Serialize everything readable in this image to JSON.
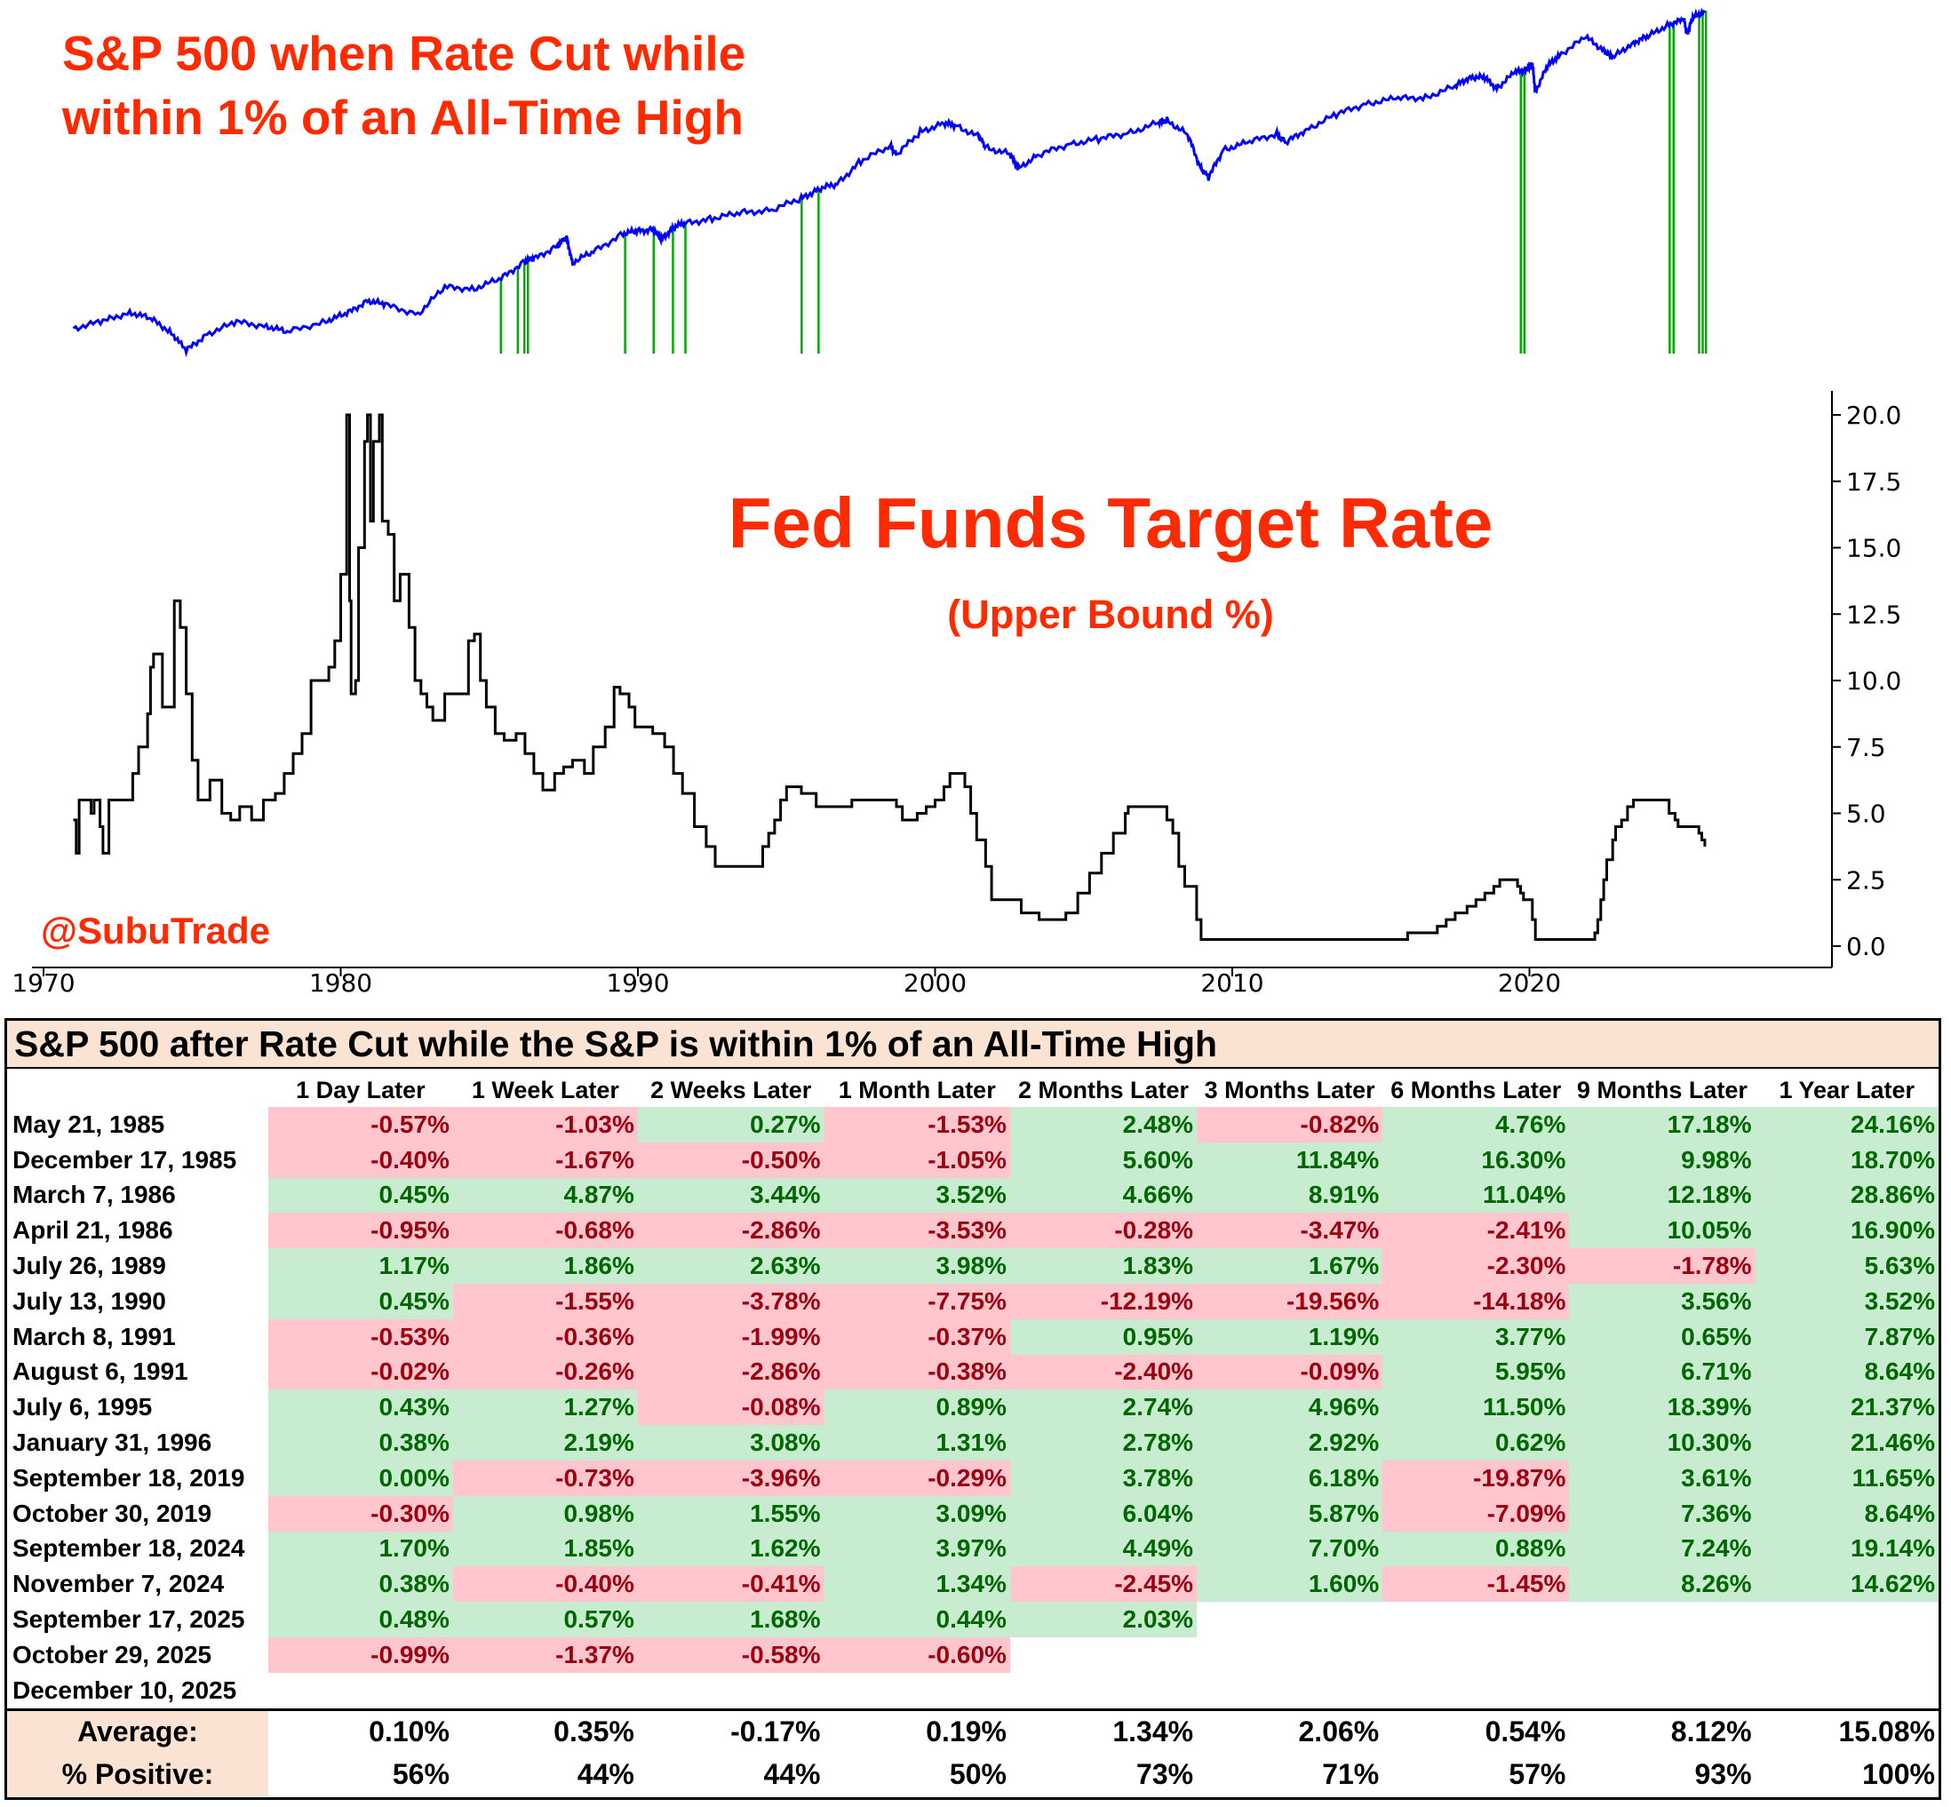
{
  "sp_title_line1": "S&P 500 when Rate Cut while",
  "sp_title_line2": "within 1% of an All-Time High",
  "ff_title": "Fed Funds Target Rate",
  "ff_subtitle": "(Upper Bound %)",
  "handle": "@SubuTrade",
  "colors": {
    "accent": "#ff2a00",
    "sp_line": "#0000ff",
    "cut_marker": "#00aa00",
    "pos_bg": "#c8ecd0",
    "pos_text": "#006600",
    "neg_bg": "#ffc6ce",
    "neg_text": "#9c0010",
    "header_bg": "#fbe3d3"
  },
  "chart_data": [
    {
      "type": "line",
      "title": "S&P 500 when Rate Cut while within 1% of an All-Time High",
      "y_scale": "log",
      "series": [
        {
          "name": "S&P 500",
          "x": [
            1971.0,
            1972.0,
            1972.9,
            1973.6,
            1974.3,
            1974.8,
            1975.5,
            1976.5,
            1977.5,
            1978.2,
            1979.5,
            1980.2,
            1980.9,
            1981.5,
            1982.6,
            1983.5,
            1984.5,
            1985.4,
            1986.2,
            1986.5,
            1987.3,
            1987.6,
            1987.8,
            1988.5,
            1989.5,
            1990.0,
            1990.5,
            1990.8,
            1991.2,
            1991.6,
            1992.5,
            1993.5,
            1994.5,
            1995.5,
            1996.1,
            1996.7,
            1997.5,
            1998.5,
            1998.7,
            1999.5,
            2000.3,
            2000.7,
            2001.5,
            2001.7,
            2002.5,
            2002.8,
            2003.5,
            2004.5,
            2005.5,
            2006.5,
            2007.5,
            2007.8,
            2008.5,
            2008.9,
            2009.2,
            2009.7,
            2010.5,
            2011.5,
            2011.8,
            2012.5,
            2013.5,
            2014.5,
            2015.5,
            2016.5,
            2017.5,
            2018.0,
            2018.5,
            2018.9,
            2019.5,
            2019.9,
            2020.1,
            2020.2,
            2020.6,
            2021.0,
            2021.9,
            2022.5,
            2022.8,
            2023.5,
            2024.0,
            2024.7,
            2025.2,
            2025.3,
            2025.5,
            2025.9
          ],
          "y": [
            95,
            104,
            118,
            108,
            90,
            70,
            88,
            103,
            98,
            90,
            105,
            115,
            138,
            130,
            115,
            165,
            162,
            185,
            235,
            240,
            290,
            320,
            230,
            265,
            340,
            350,
            360,
            315,
            370,
            390,
            415,
            450,
            465,
            545,
            620,
            660,
            900,
            1100,
            980,
            1330,
            1500,
            1450,
            1240,
            1080,
            990,
            820,
            980,
            1130,
            1210,
            1310,
            1500,
            1560,
            1280,
            850,
            720,
            1050,
            1150,
            1300,
            1150,
            1380,
            1680,
            1950,
            2080,
            2120,
            2450,
            2800,
            2750,
            2400,
            2950,
            3100,
            3300,
            2300,
            3200,
            3750,
            4750,
            4000,
            3600,
            4450,
            4800,
            5700,
            6000,
            5000,
            6150,
            6800
          ]
        }
      ],
      "rate_cut_dates": [
        1985.39,
        1985.96,
        1986.18,
        1986.3,
        1989.57,
        1990.53,
        1991.18,
        1991.6,
        1995.51,
        1996.08,
        2019.71,
        2019.83,
        2024.72,
        2024.85,
        2025.71,
        2025.83,
        2025.94
      ]
    },
    {
      "type": "line",
      "title": "Fed Funds Target Rate",
      "subtitle": "(Upper Bound %)",
      "ylim": [
        0,
        20
      ],
      "yticks": [
        "0.0",
        "2.5",
        "5.0",
        "7.5",
        "10.0",
        "12.5",
        "15.0",
        "17.5",
        "20.0"
      ],
      "xticks": [
        "1970",
        "1980",
        "1990",
        "2000",
        "2010",
        "2020"
      ],
      "series": [
        {
          "name": "Fed Funds Upper Bound",
          "x": [
            1971.0,
            1971.1,
            1971.2,
            1971.3,
            1971.6,
            1971.7,
            1971.9,
            1972.0,
            1972.2,
            1972.5,
            1972.8,
            1973.0,
            1973.2,
            1973.5,
            1973.6,
            1973.7,
            1974.0,
            1974.2,
            1974.4,
            1974.6,
            1974.8,
            1975.0,
            1975.2,
            1975.6,
            1976.0,
            1976.3,
            1976.6,
            1977.0,
            1977.4,
            1977.8,
            1978.1,
            1978.4,
            1978.7,
            1979.0,
            1979.3,
            1979.6,
            1979.8,
            1980.0,
            1980.2,
            1980.3,
            1980.35,
            1980.5,
            1980.6,
            1980.8,
            1980.9,
            1981.0,
            1981.1,
            1981.3,
            1981.4,
            1981.6,
            1981.8,
            1982.0,
            1982.3,
            1982.5,
            1982.7,
            1982.9,
            1983.1,
            1983.5,
            1984.0,
            1984.3,
            1984.5,
            1984.7,
            1984.9,
            1985.2,
            1985.5,
            1985.9,
            1986.2,
            1986.5,
            1986.8,
            1987.2,
            1987.5,
            1987.8,
            1988.2,
            1988.5,
            1988.9,
            1989.2,
            1989.4,
            1989.7,
            1989.9,
            1990.5,
            1990.9,
            1991.2,
            1991.5,
            1991.9,
            1992.3,
            1992.6,
            1993.0,
            1994.0,
            1994.2,
            1994.4,
            1994.6,
            1994.8,
            1995.0,
            1995.5,
            1996.0,
            1997.2,
            1998.7,
            1998.9,
            1999.4,
            1999.7,
            2000.0,
            2000.3,
            2000.5,
            2001.0,
            2001.2,
            2001.4,
            2001.7,
            2001.9,
            2002.9,
            2003.5,
            2004.4,
            2004.8,
            2005.2,
            2005.6,
            2006.0,
            2006.4,
            2006.5,
            2007.6,
            2007.8,
            2008.0,
            2008.2,
            2008.4,
            2008.8,
            2008.95,
            2012.0,
            2015.0,
            2015.9,
            2016.9,
            2017.2,
            2017.5,
            2017.9,
            2018.2,
            2018.5,
            2018.8,
            2019.0,
            2019.5,
            2019.6,
            2019.7,
            2019.8,
            2020.1,
            2020.2,
            2021.0,
            2022.2,
            2022.3,
            2022.4,
            2022.5,
            2022.6,
            2022.8,
            2022.9,
            2023.1,
            2023.3,
            2023.5,
            2024.0,
            2024.5,
            2024.7,
            2024.9,
            2025.0,
            2025.5,
            2025.7,
            2025.8,
            2025.9
          ],
          "y": [
            4.75,
            3.5,
            5.5,
            5.5,
            5.0,
            5.5,
            4.5,
            3.5,
            5.5,
            5.5,
            5.5,
            6.5,
            7.5,
            8.75,
            10.5,
            11.0,
            9.0,
            9.0,
            13.0,
            12.0,
            9.5,
            7.0,
            5.5,
            6.25,
            5.0,
            4.75,
            5.25,
            4.75,
            5.5,
            5.75,
            6.5,
            7.25,
            8.0,
            10.0,
            10.0,
            10.5,
            11.5,
            14.0,
            20.0,
            13.0,
            9.5,
            10.0,
            15.0,
            19.0,
            20.0,
            16.0,
            19.0,
            20.0,
            16.0,
            15.5,
            13.0,
            14.0,
            12.0,
            10.0,
            9.5,
            9.0,
            8.5,
            9.5,
            9.5,
            11.5,
            11.75,
            10.0,
            9.0,
            8.0,
            7.75,
            8.0,
            7.25,
            6.5,
            5.875,
            6.5,
            6.75,
            7.0,
            6.5,
            7.5,
            8.25,
            9.75,
            9.5,
            9.0,
            8.25,
            8.0,
            7.5,
            6.5,
            5.75,
            4.5,
            3.75,
            3.0,
            3.0,
            3.0,
            3.75,
            4.25,
            4.75,
            5.5,
            6.0,
            5.75,
            5.25,
            5.5,
            5.25,
            4.75,
            5.0,
            5.25,
            5.5,
            6.0,
            6.5,
            6.0,
            5.0,
            4.0,
            3.0,
            1.75,
            1.25,
            1.0,
            1.25,
            2.0,
            2.75,
            3.5,
            4.25,
            5.0,
            5.25,
            5.25,
            4.75,
            4.25,
            3.0,
            2.25,
            1.0,
            0.25,
            0.25,
            0.25,
            0.5,
            0.75,
            1.0,
            1.25,
            1.5,
            1.75,
            2.0,
            2.25,
            2.5,
            2.5,
            2.25,
            2.0,
            1.75,
            1.0,
            0.25,
            0.25,
            0.5,
            1.0,
            1.75,
            2.5,
            3.25,
            4.0,
            4.5,
            4.75,
            5.25,
            5.5,
            5.5,
            5.5,
            5.0,
            4.75,
            4.5,
            4.5,
            4.25,
            4.0,
            3.75
          ]
        }
      ]
    },
    {
      "type": "table",
      "title": "S&P 500 after Rate Cut while the S&P is within 1% of an All-Time High",
      "columns": [
        "",
        "1 Day Later",
        "1 Week Later",
        "2 Weeks Later",
        "1 Month Later",
        "2 Months Later",
        "3 Months Later",
        "6 Months Later",
        "9 Months Later",
        "1 Year Later"
      ],
      "rows": [
        {
          "date": "May 21, 1985",
          "values": [
            "-0.57%",
            "-1.03%",
            "0.27%",
            "-1.53%",
            "2.48%",
            "-0.82%",
            "4.76%",
            "17.18%",
            "24.16%"
          ]
        },
        {
          "date": "December 17, 1985",
          "values": [
            "-0.40%",
            "-1.67%",
            "-0.50%",
            "-1.05%",
            "5.60%",
            "11.84%",
            "16.30%",
            "9.98%",
            "18.70%"
          ]
        },
        {
          "date": "March 7, 1986",
          "values": [
            "0.45%",
            "4.87%",
            "3.44%",
            "3.52%",
            "4.66%",
            "8.91%",
            "11.04%",
            "12.18%",
            "28.86%"
          ]
        },
        {
          "date": "April 21, 1986",
          "values": [
            "-0.95%",
            "-0.68%",
            "-2.86%",
            "-3.53%",
            "-0.28%",
            "-3.47%",
            "-2.41%",
            "10.05%",
            "16.90%"
          ]
        },
        {
          "date": "July 26, 1989",
          "values": [
            "1.17%",
            "1.86%",
            "2.63%",
            "3.98%",
            "1.83%",
            "1.67%",
            "-2.30%",
            "-1.78%",
            "5.63%"
          ]
        },
        {
          "date": "July 13, 1990",
          "values": [
            "0.45%",
            "-1.55%",
            "-3.78%",
            "-7.75%",
            "-12.19%",
            "-19.56%",
            "-14.18%",
            "3.56%",
            "3.52%"
          ]
        },
        {
          "date": "March 8, 1991",
          "values": [
            "-0.53%",
            "-0.36%",
            "-1.99%",
            "-0.37%",
            "0.95%",
            "1.19%",
            "3.77%",
            "0.65%",
            "7.87%"
          ]
        },
        {
          "date": "August 6, 1991",
          "values": [
            "-0.02%",
            "-0.26%",
            "-2.86%",
            "-0.38%",
            "-2.40%",
            "-0.09%",
            "5.95%",
            "6.71%",
            "8.64%"
          ]
        },
        {
          "date": "July 6, 1995",
          "values": [
            "0.43%",
            "1.27%",
            "-0.08%",
            "0.89%",
            "2.74%",
            "4.96%",
            "11.50%",
            "18.39%",
            "21.37%"
          ]
        },
        {
          "date": "January 31, 1996",
          "values": [
            "0.38%",
            "2.19%",
            "3.08%",
            "1.31%",
            "2.78%",
            "2.92%",
            "0.62%",
            "10.30%",
            "21.46%"
          ]
        },
        {
          "date": "September 18, 2019",
          "values": [
            "0.00%",
            "-0.73%",
            "-3.96%",
            "-0.29%",
            "3.78%",
            "6.18%",
            "-19.87%",
            "3.61%",
            "11.65%"
          ]
        },
        {
          "date": "October 30, 2019",
          "values": [
            "-0.30%",
            "0.98%",
            "1.55%",
            "3.09%",
            "6.04%",
            "5.87%",
            "-7.09%",
            "7.36%",
            "8.64%"
          ]
        },
        {
          "date": "September 18, 2024",
          "values": [
            "1.70%",
            "1.85%",
            "1.62%",
            "3.97%",
            "4.49%",
            "7.70%",
            "0.88%",
            "7.24%",
            "19.14%"
          ]
        },
        {
          "date": "November 7, 2024",
          "values": [
            "0.38%",
            "-0.40%",
            "-0.41%",
            "1.34%",
            "-2.45%",
            "1.60%",
            "-1.45%",
            "8.26%",
            "14.62%"
          ]
        },
        {
          "date": "September 17, 2025",
          "values": [
            "0.48%",
            "0.57%",
            "1.68%",
            "0.44%",
            "2.03%",
            "",
            "",
            "",
            ""
          ]
        },
        {
          "date": "October 29, 2025",
          "values": [
            "-0.99%",
            "-1.37%",
            "-0.58%",
            "-0.60%",
            "",
            "",
            "",
            "",
            ""
          ]
        },
        {
          "date": "December 10, 2025",
          "values": [
            "",
            "",
            "",
            "",
            "",
            "",
            "",
            "",
            ""
          ]
        }
      ],
      "summary": [
        {
          "label": "Average:",
          "values": [
            "0.10%",
            "0.35%",
            "-0.17%",
            "0.19%",
            "1.34%",
            "2.06%",
            "0.54%",
            "8.12%",
            "15.08%"
          ]
        },
        {
          "label": "% Positive:",
          "values": [
            "56%",
            "44%",
            "44%",
            "50%",
            "73%",
            "71%",
            "57%",
            "93%",
            "100%"
          ]
        }
      ]
    }
  ]
}
